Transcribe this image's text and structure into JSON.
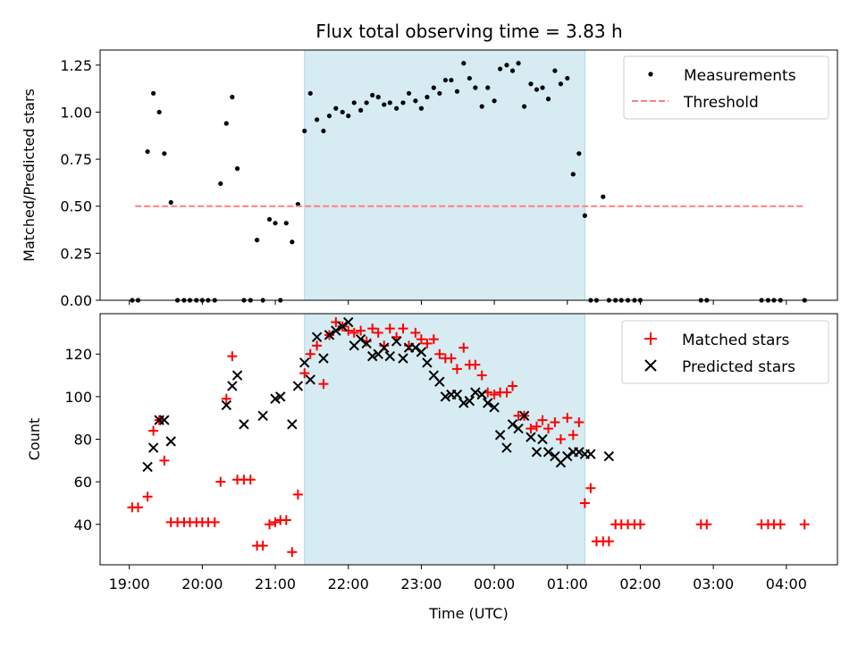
{
  "chart_data": [
    {
      "type": "scatter",
      "title": "Flux total observing time = 3.83 h",
      "ylabel": "Matched/Predicted stars",
      "xlabel": "",
      "ylim": [
        0,
        1.33
      ],
      "xlim_hours": [
        18.6,
        28.7
      ],
      "yticks": [
        0,
        0.25,
        0.5,
        0.75,
        1.0,
        1.25
      ],
      "ytick_labels": [
        "0.00",
        "0.25",
        "0.50",
        "0.75",
        "1.00",
        "1.25"
      ],
      "legend": {
        "position": "top-right",
        "entries": [
          "Measurements",
          "Threshold"
        ]
      },
      "observing_window_hours": [
        21.4,
        25.24
      ],
      "colors": {
        "measurements": "#000000",
        "threshold": "#ff7f7f",
        "window": "#add8e6"
      },
      "threshold": {
        "name": "Threshold",
        "value": 0.5,
        "x": [
          19.08,
          28.25
        ]
      },
      "series": [
        {
          "name": "Measurements",
          "x": [
            19.04,
            19.12,
            19.25,
            19.33,
            19.41,
            19.48,
            19.57,
            19.66,
            19.75,
            19.83,
            19.92,
            20.0,
            20.08,
            20.17,
            20.25,
            20.33,
            20.41,
            20.48,
            20.57,
            20.66,
            20.75,
            20.83,
            20.92,
            21.0,
            21.07,
            21.15,
            21.23,
            21.31,
            21.4,
            21.48,
            21.57,
            21.66,
            21.74,
            21.83,
            21.92,
            22.0,
            22.08,
            22.17,
            22.25,
            22.33,
            22.41,
            22.49,
            22.57,
            22.66,
            22.75,
            22.83,
            22.92,
            23.0,
            23.08,
            23.17,
            23.25,
            23.33,
            23.41,
            23.49,
            23.58,
            23.66,
            23.74,
            23.83,
            23.91,
            24.0,
            24.08,
            24.17,
            24.25,
            24.33,
            24.41,
            24.5,
            24.58,
            24.66,
            24.74,
            24.83,
            24.91,
            25.0,
            25.08,
            25.16,
            25.24,
            25.32,
            25.4,
            25.49,
            25.57,
            25.66,
            25.74,
            25.83,
            25.92,
            26.0,
            26.83,
            26.91,
            27.66,
            27.75,
            27.83,
            27.92,
            28.25
          ],
          "y": [
            0,
            0,
            0.79,
            1.1,
            1.0,
            0.78,
            0.52,
            0,
            0,
            0,
            0,
            0,
            0,
            0,
            0.62,
            0.94,
            1.08,
            0.7,
            0,
            0,
            0.32,
            0,
            0.43,
            0.41,
            0,
            0.41,
            0.31,
            0.51,
            0.9,
            1.1,
            0.96,
            0.9,
            0.98,
            1.02,
            1.0,
            0.98,
            1.05,
            1.01,
            1.05,
            1.09,
            1.08,
            1.04,
            1.05,
            1.02,
            1.05,
            1.1,
            1.06,
            1.02,
            1.08,
            1.13,
            1.1,
            1.17,
            1.17,
            1.11,
            1.26,
            1.18,
            1.13,
            1.03,
            1.13,
            1.06,
            1.23,
            1.25,
            1.22,
            1.26,
            1.03,
            1.15,
            1.12,
            1.13,
            1.07,
            1.22,
            1.15,
            1.18,
            0.67,
            0.78,
            0.45,
            0,
            0,
            0.55,
            0,
            0,
            0,
            0,
            0,
            0,
            0,
            0,
            0,
            0,
            0,
            0,
            0
          ]
        }
      ]
    },
    {
      "type": "scatter",
      "title": "",
      "ylabel": "Count",
      "xlabel": "Time (UTC)",
      "ylim": [
        21,
        139
      ],
      "xlim_hours": [
        18.6,
        28.7
      ],
      "yticks": [
        40,
        60,
        80,
        100,
        120
      ],
      "ytick_labels": [
        "40",
        "60",
        "80",
        "100",
        "120"
      ],
      "xticks_hours": [
        19,
        20,
        21,
        22,
        23,
        24,
        25,
        26,
        27,
        28
      ],
      "xtick_labels": [
        "19:00",
        "20:00",
        "21:00",
        "22:00",
        "23:00",
        "00:00",
        "01:00",
        "02:00",
        "03:00",
        "04:00"
      ],
      "legend": {
        "position": "top-right",
        "entries": [
          "Matched stars",
          "Predicted stars"
        ]
      },
      "observing_window_hours": [
        21.4,
        25.24
      ],
      "colors": {
        "matched": "#ff0000",
        "predicted": "#000000",
        "window": "#add8e6"
      },
      "series": [
        {
          "name": "Matched stars",
          "marker": "plus",
          "x": [
            19.04,
            19.12,
            19.25,
            19.33,
            19.41,
            19.48,
            19.57,
            19.66,
            19.75,
            19.83,
            19.92,
            20.0,
            20.08,
            20.17,
            20.25,
            20.33,
            20.41,
            20.48,
            20.57,
            20.66,
            20.75,
            20.83,
            20.92,
            21.0,
            21.07,
            21.15,
            21.23,
            21.31,
            21.4,
            21.48,
            21.57,
            21.66,
            21.74,
            21.83,
            21.92,
            22.0,
            22.08,
            22.17,
            22.25,
            22.33,
            22.41,
            22.49,
            22.57,
            22.66,
            22.75,
            22.83,
            22.92,
            23.0,
            23.08,
            23.17,
            23.25,
            23.33,
            23.41,
            23.49,
            23.58,
            23.66,
            23.74,
            23.83,
            23.91,
            24.0,
            24.08,
            24.17,
            24.25,
            24.33,
            24.41,
            24.5,
            24.58,
            24.66,
            24.74,
            24.83,
            24.91,
            25.0,
            25.08,
            25.16,
            25.24,
            25.32,
            25.4,
            25.49,
            25.57,
            25.66,
            25.74,
            25.83,
            25.92,
            26.0,
            26.83,
            26.91,
            27.66,
            27.75,
            27.83,
            27.92,
            28.25
          ],
          "y": [
            48,
            48,
            53,
            84,
            89,
            70,
            41,
            41,
            41,
            41,
            41,
            41,
            41,
            41,
            60,
            99,
            119,
            61,
            61,
            61,
            30,
            30,
            40,
            41,
            42,
            42,
            27,
            54,
            111,
            120,
            124,
            106,
            129,
            135,
            133,
            131,
            130,
            131,
            126,
            132,
            130,
            124,
            132,
            128,
            132,
            124,
            130,
            127,
            125,
            127,
            120,
            118,
            118,
            113,
            123,
            115,
            115,
            110,
            102,
            101,
            102,
            102,
            105,
            91,
            91,
            85,
            86,
            89,
            85,
            88,
            80,
            90,
            82,
            88,
            50,
            57,
            32,
            32,
            32,
            40,
            40,
            40,
            40,
            40,
            40,
            40,
            40,
            40,
            40,
            40,
            40
          ]
        },
        {
          "name": "Predicted stars",
          "marker": "x",
          "x": [
            19.25,
            19.33,
            19.41,
            19.48,
            19.57,
            20.33,
            20.41,
            20.48,
            20.57,
            20.83,
            21.0,
            21.07,
            21.23,
            21.31,
            21.4,
            21.48,
            21.57,
            21.66,
            21.74,
            21.83,
            21.92,
            22.0,
            22.08,
            22.17,
            22.25,
            22.33,
            22.41,
            22.49,
            22.57,
            22.66,
            22.75,
            22.83,
            22.92,
            23.0,
            23.08,
            23.17,
            23.25,
            23.33,
            23.41,
            23.49,
            23.58,
            23.66,
            23.74,
            23.83,
            23.91,
            24.0,
            24.08,
            24.17,
            24.25,
            24.33,
            24.41,
            24.5,
            24.58,
            24.66,
            24.74,
            24.83,
            24.91,
            25.0,
            25.08,
            25.16,
            25.24,
            25.32,
            25.57
          ],
          "y": [
            67,
            76,
            89,
            89,
            79,
            96,
            105,
            110,
            87,
            91,
            99,
            100,
            87,
            105,
            116,
            108,
            128,
            118,
            129,
            131,
            133,
            135,
            124,
            127,
            125,
            119,
            120,
            123,
            119,
            126,
            118,
            123,
            123,
            121,
            116,
            110,
            107,
            100,
            101,
            101,
            97,
            98,
            102,
            101,
            97,
            95,
            82,
            76,
            87,
            85,
            91,
            81,
            74,
            80,
            74,
            72,
            69,
            72,
            74,
            74,
            73,
            73,
            72
          ]
        }
      ]
    }
  ]
}
